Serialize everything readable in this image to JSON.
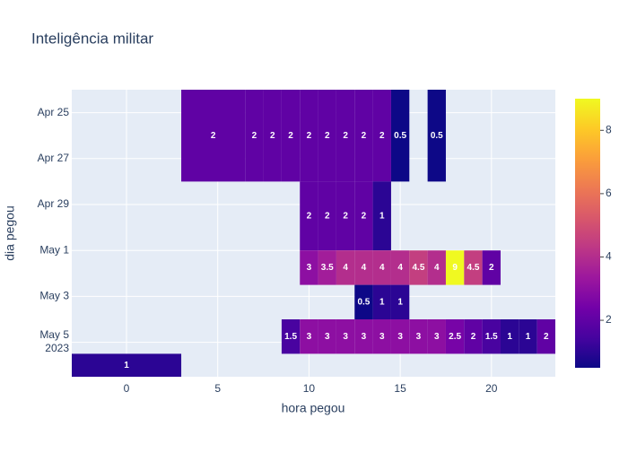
{
  "chart_data": {
    "type": "heatmap",
    "title": "Inteligência militar",
    "x_label": "hora pegou",
    "y_label": "dia pegou",
    "x": [
      0,
      6,
      7,
      8,
      9,
      10,
      11,
      12,
      13,
      14,
      15,
      16,
      17,
      18,
      19,
      20,
      21,
      22,
      23
    ],
    "y": [
      "2023-04-26",
      "2023-04-30",
      "2023-05-02",
      "2023-05-03",
      "2023-05-05",
      "2023-05-06"
    ],
    "z": [
      [
        null,
        2,
        2,
        2,
        2,
        2,
        2,
        2,
        2,
        2,
        0.5,
        null,
        0.5,
        null,
        null,
        null,
        null,
        null,
        null
      ],
      [
        null,
        null,
        null,
        null,
        null,
        2,
        2,
        2,
        2,
        1,
        null,
        null,
        null,
        null,
        null,
        null,
        null,
        null,
        null
      ],
      [
        null,
        null,
        null,
        null,
        null,
        3,
        3.5,
        4,
        4,
        4,
        4,
        4.5,
        4,
        9,
        4.5,
        2,
        null,
        null,
        null
      ],
      [
        null,
        null,
        null,
        null,
        null,
        null,
        null,
        null,
        0.5,
        1,
        1,
        null,
        null,
        null,
        null,
        null,
        null,
        null,
        null
      ],
      [
        null,
        null,
        null,
        null,
        1.5,
        3,
        3,
        3,
        3,
        3,
        3,
        3,
        3,
        2.5,
        2,
        1.5,
        1,
        1,
        2
      ],
      [
        1,
        null,
        null,
        null,
        null,
        null,
        null,
        null,
        null,
        null,
        null,
        null,
        null,
        null,
        null,
        null,
        null,
        null,
        null
      ]
    ],
    "xlim": [
      -3,
      23.5
    ],
    "xticks": [
      0,
      5,
      10,
      15,
      20
    ],
    "ylim": [
      "2023-04-24",
      "2023-05-06T12:00"
    ],
    "yticks": [
      {
        "value": "2023-04-25",
        "label": "Apr 25"
      },
      {
        "value": "2023-04-27",
        "label": "Apr 27"
      },
      {
        "value": "2023-04-29",
        "label": "Apr 29"
      },
      {
        "value": "2023-05-01",
        "label": "May 1"
      },
      {
        "value": "2023-05-03",
        "label": "May 3"
      },
      {
        "value": "2023-05-05",
        "label": "May 5\n2023"
      }
    ],
    "zlim": [
      0.5,
      9
    ],
    "colorbar_ticks": [
      2,
      4,
      6,
      8
    ],
    "colorscale": [
      "#0d0887",
      "#46039f",
      "#7201a8",
      "#9c179e",
      "#bd3786",
      "#d8576b",
      "#ed7953",
      "#fb9f3a",
      "#fdca26",
      "#f0f921"
    ],
    "grid": true
  }
}
